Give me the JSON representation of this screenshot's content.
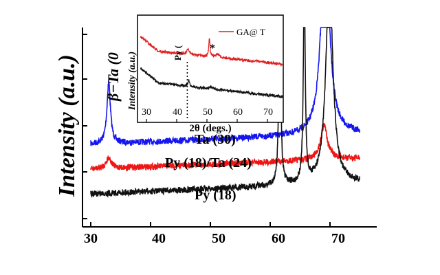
{
  "chart_data": {
    "type": "line",
    "ylabel": "Intensity (a.u.)",
    "xlabel": "",
    "xlim": [
      28,
      76
    ],
    "x_ticks": [
      "30",
      "40",
      "50",
      "60",
      "70"
    ],
    "annotations": {
      "beta_ta": "β−Ta (0",
      "ta30": "Ta (30)",
      "pyta": "Py (18)/Ta (24)",
      "py18": "Py (18)"
    },
    "series": [
      {
        "name": "Ta (30)",
        "color": "#1515ee",
        "baseline": 210,
        "peaks": [
          {
            "x": 33.0,
            "h": 90,
            "w": 0.35
          },
          {
            "x": 69.2,
            "h": 300,
            "w": 0.8
          }
        ]
      },
      {
        "name": "Py (18)/Ta (24)",
        "color": "#ee1515",
        "baseline": 246,
        "peaks": [
          {
            "x": 33.0,
            "h": 16,
            "w": 0.5
          },
          {
            "x": 69.0,
            "h": 50,
            "w": 0.7
          }
        ]
      },
      {
        "name": "Py (18)",
        "color": "#111111",
        "baseline": 282,
        "peaks": [
          {
            "x": 61.6,
            "h": 300,
            "w": 0.18
          },
          {
            "x": 65.7,
            "h": 300,
            "w": 0.18
          },
          {
            "x": 69.9,
            "h": 300,
            "w": 0.7
          }
        ]
      }
    ],
    "inset": {
      "xlabel": "2θ (degs.)",
      "ylabel": "Intensity (a.u.)",
      "xlim": [
        28,
        75
      ],
      "x_ticks": [
        "30",
        "40",
        "50",
        "60",
        "70"
      ],
      "legend": "GA@ T",
      "peak_label": "Py (",
      "star": "*",
      "dotted_x": 43.5
    }
  }
}
